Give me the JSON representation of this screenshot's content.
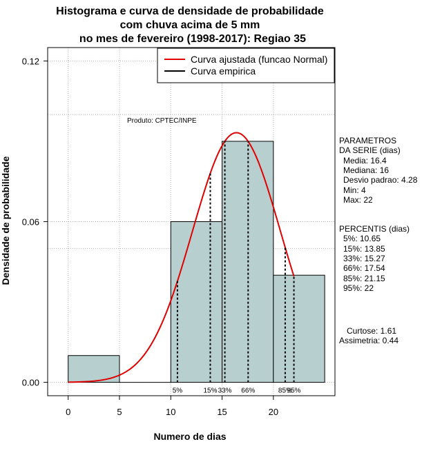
{
  "chart_data": {
    "type": "histogram",
    "title_lines": [
      "Histograma e curva de densidade de probabilidade",
      "com chuva acima de 5 mm",
      "no mes de fevereiro (1998-2017): Regiao 35"
    ],
    "xlabel": "Numero de dias",
    "ylabel": "Densidade de probabilidade",
    "xlim": [
      -2,
      26
    ],
    "ylim": [
      -0.005,
      0.125
    ],
    "x_ticks": [
      0,
      5,
      10,
      15,
      20
    ],
    "y_ticks": [
      0.0,
      0.06,
      0.12
    ],
    "y_tick_labels": [
      "0.00",
      "0.06",
      "0.12"
    ],
    "grid_x": [
      0,
      5,
      10,
      15,
      20
    ],
    "grid_y": [
      0.0,
      0.06,
      0.12,
      0.1,
      0.05
    ],
    "bars": [
      {
        "x0": 0,
        "x1": 5,
        "density": 0.01
      },
      {
        "x0": 5,
        "x1": 10,
        "density": 0.0
      },
      {
        "x0": 10,
        "x1": 15,
        "density": 0.06
      },
      {
        "x0": 15,
        "x1": 20,
        "density": 0.09
      },
      {
        "x0": 20,
        "x1": 25,
        "density": 0.04
      }
    ],
    "bar_color": "#b7cfcf",
    "normal_fit": {
      "mean": 16.4,
      "sd": 4.28,
      "x_range": [
        0,
        22
      ],
      "color": "#e00000"
    },
    "percentile_lines": [
      {
        "label": "5%",
        "x": 10.65
      },
      {
        "label": "15%",
        "x": 13.85
      },
      {
        "label": "33%",
        "x": 15.27
      },
      {
        "label": "66%",
        "x": 17.54
      },
      {
        "label": "85%",
        "x": 21.15
      },
      {
        "label": "95%",
        "x": 22
      }
    ],
    "legend": {
      "position": "top-right",
      "entries": [
        {
          "label": "Curva ajustada (funcao Normal)",
          "color": "#e00000"
        },
        {
          "label": "Curva empirica",
          "color": "#000000"
        }
      ]
    },
    "watermark": "Produto: CPTEC/INPE"
  },
  "side_panel": {
    "parametros_title_1": "PARAMETROS",
    "parametros_title_2": "DA SERIE (dias)",
    "media": "Media: 16.4",
    "mediana": "Mediana: 16",
    "desvio": "Desvio padrao: 4.28",
    "min": "Min: 4",
    "max": "Max: 22",
    "percentis_title": "PERCENTIS (dias)",
    "p5": "5%: 10.65",
    "p15": "15%: 13.85",
    "p33": "33%: 15.27",
    "p66": "66%: 17.54",
    "p85": "85%: 21.15",
    "p95": "95%: 22",
    "curtose": "Curtose: 1.61",
    "assimetria": "Assimetria: 0.44"
  }
}
